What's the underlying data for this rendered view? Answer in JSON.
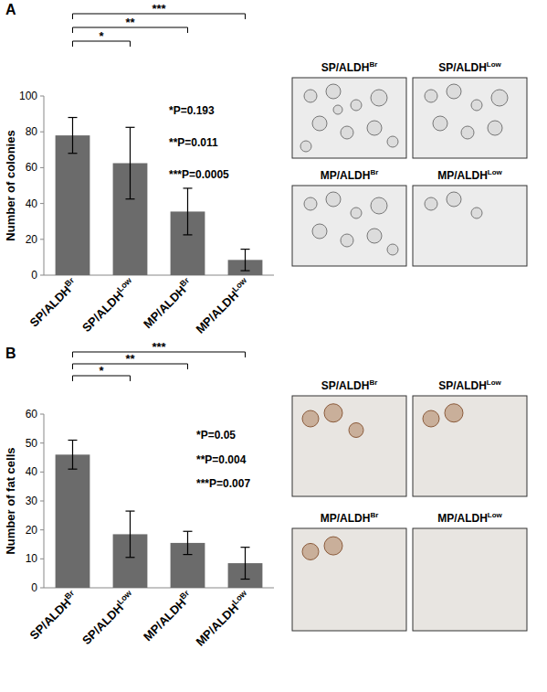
{
  "chart_data": [
    {
      "type": "bar",
      "panel": "A",
      "y_label": "Number of colonies",
      "categories": [
        {
          "text": "SP/ALDH",
          "sup": "Br"
        },
        {
          "text": "SP/ALDH",
          "sup": "Low"
        },
        {
          "text": "MP/ALDH",
          "sup": "Br"
        },
        {
          "text": "MP/ALDH",
          "sup": "Low"
        }
      ],
      "values": [
        78,
        62.5,
        35.5,
        8.5
      ],
      "errors": [
        10,
        20,
        13,
        6
      ],
      "color": "#6b6b6b",
      "ylim": [
        0,
        100
      ],
      "yticks": [
        0,
        20,
        40,
        60,
        80,
        100
      ],
      "comparisons": [
        {
          "from": 0,
          "to": 1,
          "label": "*"
        },
        {
          "from": 0,
          "to": 2,
          "label": "**"
        },
        {
          "from": 0,
          "to": 3,
          "label": "***"
        }
      ],
      "annotations": [
        "*P=0.193",
        "**P=0.011",
        "***P=0.0005"
      ]
    },
    {
      "type": "bar",
      "panel": "B",
      "y_label": "Number of fat cells",
      "categories": [
        {
          "text": "SP/ALDH",
          "sup": "Br"
        },
        {
          "text": "SP/ALDH",
          "sup": "Low"
        },
        {
          "text": "MP/ALDH",
          "sup": "Br"
        },
        {
          "text": "MP/ALDH",
          "sup": "Low"
        }
      ],
      "values": [
        46,
        18.5,
        15.5,
        8.5
      ],
      "errors": [
        5,
        8,
        4,
        5.5
      ],
      "color": "#6b6b6b",
      "ylim": [
        0,
        60
      ],
      "yticks": [
        0,
        10,
        20,
        30,
        40,
        50,
        60
      ],
      "comparisons": [
        {
          "from": 0,
          "to": 1,
          "label": "*"
        },
        {
          "from": 0,
          "to": 2,
          "label": "**"
        },
        {
          "from": 0,
          "to": 3,
          "label": "***"
        }
      ],
      "annotations": [
        "*P=0.05",
        "**P=0.004",
        "***P=0.007"
      ]
    }
  ],
  "image_panels": [
    {
      "titles": [
        {
          "text": "SP/ALDH",
          "sup": "Br"
        },
        {
          "text": "SP/ALDH",
          "sup": "Low"
        },
        {
          "text": "MP/ALDH",
          "sup": "Br"
        },
        {
          "text": "MP/ALDH",
          "sup": "Low"
        }
      ]
    },
    {
      "titles": [
        {
          "text": "SP/ALDH",
          "sup": "Br"
        },
        {
          "text": "SP/ALDH",
          "sup": "Low"
        },
        {
          "text": "MP/ALDH",
          "sup": "Br"
        },
        {
          "text": "MP/ALDH",
          "sup": "Low"
        }
      ]
    }
  ]
}
